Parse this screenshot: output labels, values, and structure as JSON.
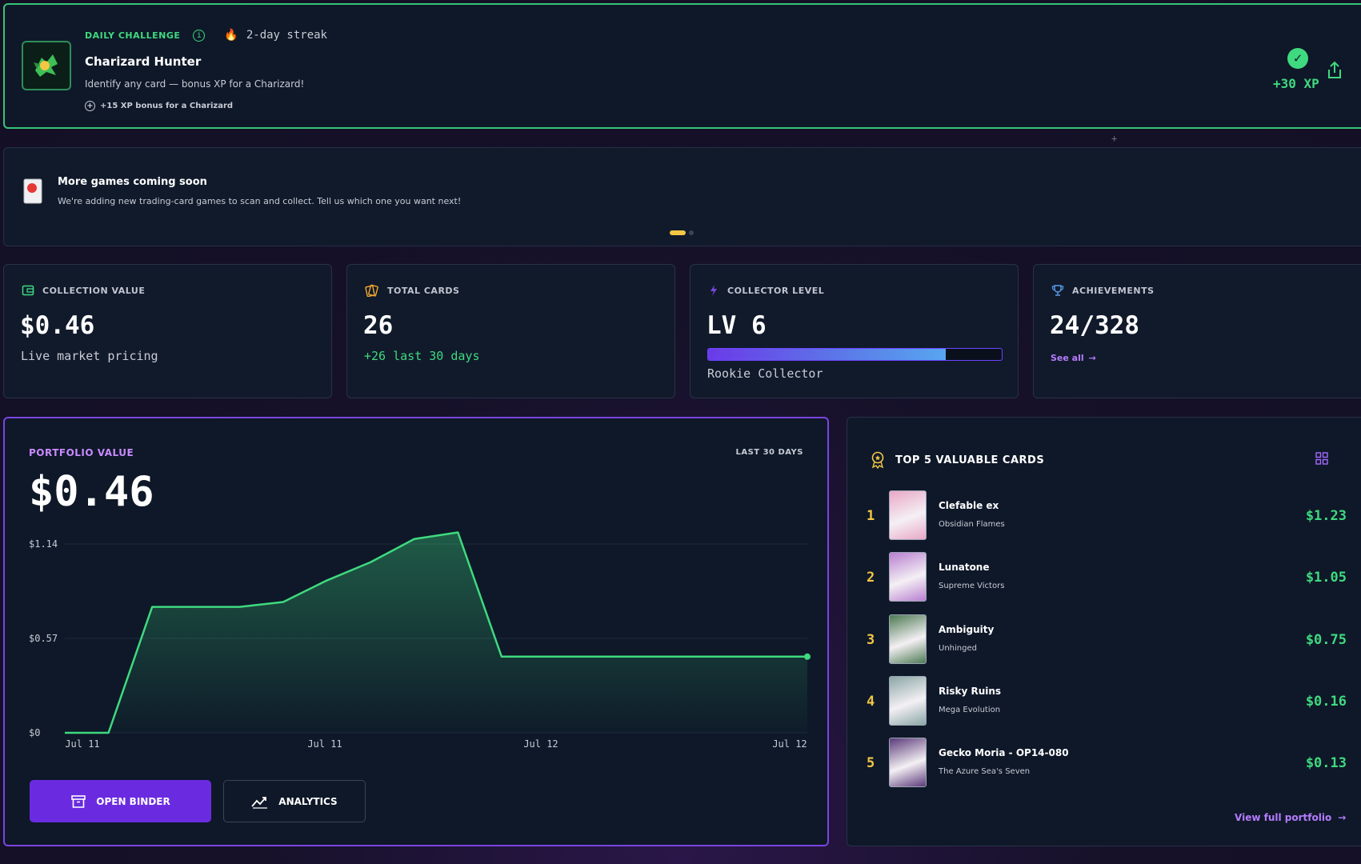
{
  "challenge": {
    "tag": "DAILY CHALLENGE",
    "streak": "2-day streak",
    "title": "Charizard Hunter",
    "description": "Identify any card — bonus XP for a Charizard!",
    "bonus": "+15 XP bonus for a Charizard",
    "xp": "+30 XP",
    "colors": {
      "accent": "#3fd97f"
    }
  },
  "announcement": {
    "title": "More games coming soon",
    "text": "We're adding new trading-card games to scan and collect. Tell us which one you want next!"
  },
  "stats": [
    {
      "label": "COLLECTION VALUE",
      "value": "$0.46",
      "sub": "Live market pricing",
      "icon": "wallet-icon"
    },
    {
      "label": "TOTAL CARDS",
      "value": "26",
      "sub": "+26 last 30 days",
      "icon": "cards-icon"
    },
    {
      "label": "COLLECTOR LEVEL",
      "value": "LV 6",
      "sub": "Rookie Collector",
      "progress": 0.81,
      "icon": "bolt-icon"
    },
    {
      "label": "ACHIEVEMENTS",
      "value": "24/328",
      "link": "See all",
      "icon": "trophy-icon"
    }
  ],
  "portfolio": {
    "label": "PORTFOLIO VALUE",
    "range": "LAST 30 DAYS",
    "value": "$0.46",
    "open_binder": "OPEN BINDER",
    "analytics": "ANALYTICS"
  },
  "chart_data": {
    "type": "area",
    "title": "",
    "xlabel": "",
    "ylabel": "",
    "x_ticks": [
      "Jul 11",
      "Jul 11",
      "Jul 12",
      "Jul 12"
    ],
    "y_ticks": [
      "$0",
      "$0.57",
      "$1.14"
    ],
    "ylim": [
      0,
      1.14
    ],
    "series": [
      {
        "values": [
          0,
          0,
          0.76,
          0.76,
          0.76,
          0.79,
          0.92,
          1.03,
          1.17,
          1.21,
          0.46,
          0.46,
          0.46,
          0.46,
          0.46,
          0.46,
          0.46,
          0.46
        ]
      }
    ],
    "color": "#3fd97f",
    "grid": true
  },
  "top_cards": {
    "title": "TOP 5 VALUABLE CARDS",
    "items": [
      {
        "rank": "1",
        "name": "Clefable ex",
        "set": "Obsidian Flames",
        "price": "$1.23",
        "thumb": "#e9a7c6"
      },
      {
        "rank": "2",
        "name": "Lunatone",
        "set": "Supreme Victors",
        "price": "$1.05",
        "thumb": "#b77fd0"
      },
      {
        "rank": "3",
        "name": "Ambiguity",
        "set": "Unhinged",
        "price": "$0.75",
        "thumb": "#4c7a52"
      },
      {
        "rank": "4",
        "name": "Risky Ruins",
        "set": "Mega Evolution",
        "price": "$0.16",
        "thumb": "#8aa6a6"
      },
      {
        "rank": "5",
        "name": "Gecko Moria - OP14-080",
        "set": "The Azure Sea's Seven",
        "price": "$0.13",
        "thumb": "#5a3a7a"
      }
    ],
    "view_full": "View full portfolio"
  }
}
